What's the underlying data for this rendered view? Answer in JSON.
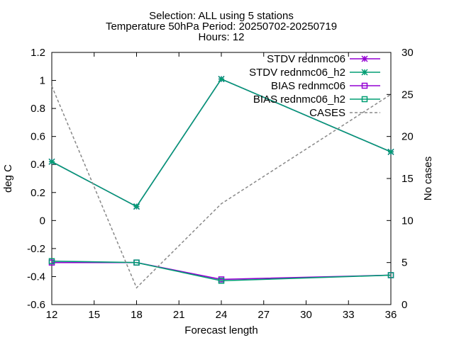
{
  "chart_data": {
    "type": "line",
    "title_lines": [
      "Selection: ALL using     5 stations",
      "Temperature 50hPa   Period: 20250702-20250719",
      "Hours: 12"
    ],
    "xlabel": "Forecast length",
    "ylabel": "deg C",
    "y2label": "No cases",
    "x": [
      12,
      18,
      24,
      36
    ],
    "xlim": [
      12,
      36
    ],
    "xticks": [
      12,
      15,
      18,
      21,
      24,
      27,
      30,
      33,
      36
    ],
    "ylim": [
      -0.6,
      1.2
    ],
    "yticks": [
      -0.6,
      -0.4,
      -0.2,
      0,
      0.2,
      0.4,
      0.6,
      0.8,
      1,
      1.2
    ],
    "y2lim": [
      0,
      30
    ],
    "y2ticks": [
      0,
      5,
      10,
      15,
      20,
      25,
      30
    ],
    "grid": false,
    "legend_position": "top-right",
    "series": [
      {
        "name": "STDV rednmc06",
        "axis": "y1",
        "color": "#9400d3",
        "marker": "star",
        "dash": false,
        "values": [
          0.42,
          0.1,
          1.01,
          0.49
        ]
      },
      {
        "name": "STDV rednmc06_h2",
        "axis": "y1",
        "color": "#009e73",
        "marker": "star",
        "dash": false,
        "values": [
          0.42,
          0.1,
          1.01,
          0.49
        ]
      },
      {
        "name": "BIAS rednmc06",
        "axis": "y1",
        "color": "#9400d3",
        "marker": "square",
        "dash": false,
        "values": [
          -0.3,
          -0.3,
          -0.42,
          -0.39
        ]
      },
      {
        "name": "BIAS rednmc06_h2",
        "axis": "y1",
        "color": "#009e73",
        "marker": "square",
        "dash": false,
        "values": [
          -0.29,
          -0.3,
          -0.43,
          -0.39
        ]
      },
      {
        "name": "CASES",
        "axis": "y2",
        "color": "#888888",
        "marker": "none",
        "dash": true,
        "values": [
          26,
          2,
          12,
          25
        ]
      }
    ]
  }
}
